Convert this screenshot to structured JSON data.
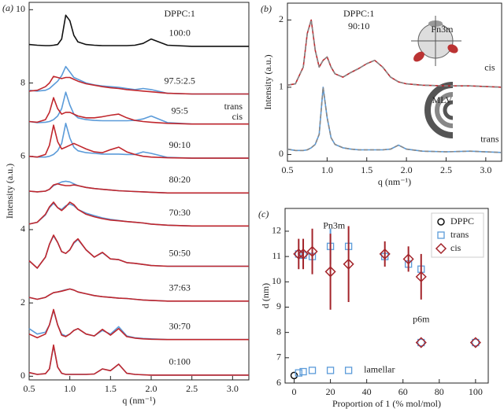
{
  "chart_data": [
    {
      "type": "line",
      "panel_label": "(a)",
      "x_label": "q (nm⁻¹)",
      "y_label": "Intensity (a.u.)",
      "annotation": "DPPC:1",
      "xlim": [
        0.5,
        3.2
      ],
      "ylim": [
        -0.1,
        10.2
      ],
      "xticks": [
        0.5,
        {
          "value": 1,
          "label": "1.0"
        },
        1.5,
        {
          "value": 2,
          "label": "2.0"
        },
        2.5,
        {
          "value": 3,
          "label": "3.0"
        }
      ],
      "yticks": [
        0,
        2,
        4,
        6,
        8,
        10
      ],
      "legend": [
        {
          "name": "trans",
          "color": "#5b9bd9"
        },
        {
          "name": "cis",
          "color": "#c0272d"
        }
      ],
      "x": [
        0.5,
        0.6,
        0.7,
        0.75,
        0.8,
        0.85,
        0.9,
        0.95,
        1.0,
        1.05,
        1.1,
        1.2,
        1.3,
        1.4,
        1.5,
        1.6,
        1.7,
        1.8,
        1.9,
        2.0,
        2.2,
        2.5,
        2.8,
        3.2
      ],
      "samples": [
        {
          "label": "100:0",
          "series": [
            {
              "color": "#111111",
              "values": [
                9.05,
                9.03,
                9.02,
                9.02,
                9.03,
                9.05,
                9.2,
                9.85,
                9.7,
                9.3,
                9.12,
                9.05,
                9.03,
                9.02,
                9.02,
                9.02,
                9.02,
                9.03,
                9.08,
                9.2,
                9.03,
                9.0,
                9.0,
                9.0
              ]
            }
          ]
        },
        {
          "label": "97.5:2.5",
          "series": [
            {
              "color": "#5b9bd9",
              "values": [
                7.8,
                7.78,
                7.8,
                7.85,
                7.95,
                8.05,
                8.2,
                8.45,
                8.3,
                8.15,
                8.1,
                8.0,
                7.95,
                7.92,
                7.9,
                7.88,
                7.85,
                7.82,
                7.85,
                7.82,
                7.72,
                7.7,
                7.7,
                7.7
              ]
            },
            {
              "color": "#c0272d",
              "values": [
                7.78,
                7.8,
                7.9,
                8.0,
                8.18,
                8.15,
                8.12,
                8.15,
                8.15,
                8.1,
                8.05,
                7.98,
                7.94,
                7.9,
                7.87,
                7.85,
                7.82,
                7.8,
                7.78,
                7.76,
                7.72,
                7.7,
                7.7,
                7.7
              ]
            }
          ]
        },
        {
          "label": "95:5",
          "series": [
            {
              "color": "#5b9bd9",
              "values": [
                6.95,
                6.92,
                6.93,
                6.95,
                7.0,
                7.1,
                7.3,
                7.75,
                7.4,
                7.15,
                7.05,
                7.0,
                6.98,
                6.97,
                6.97,
                6.97,
                6.97,
                6.98,
                7.02,
                7.1,
                6.92,
                6.88,
                6.88,
                6.88
              ]
            },
            {
              "color": "#c0272d",
              "values": [
                6.95,
                6.93,
                7.0,
                7.2,
                7.6,
                7.3,
                7.15,
                7.2,
                7.2,
                7.15,
                7.1,
                7.05,
                7.05,
                7.08,
                7.12,
                7.15,
                7.05,
                6.98,
                6.95,
                6.93,
                6.9,
                6.88,
                6.88,
                6.88
              ]
            }
          ]
        },
        {
          "label": "90:10",
          "series": [
            {
              "color": "#5b9bd9",
              "values": [
                6.0,
                5.98,
                5.98,
                6.0,
                6.05,
                6.15,
                6.35,
                6.9,
                6.5,
                6.25,
                6.15,
                6.1,
                6.08,
                6.06,
                6.06,
                6.06,
                6.05,
                6.05,
                6.12,
                6.08,
                5.97,
                5.95,
                5.95,
                5.95
              ]
            },
            {
              "color": "#c0272d",
              "values": [
                6.0,
                5.98,
                6.05,
                6.3,
                6.85,
                6.4,
                6.2,
                6.25,
                6.3,
                6.35,
                6.3,
                6.2,
                6.12,
                6.1,
                6.18,
                6.25,
                6.12,
                6.05,
                6.0,
                5.98,
                5.96,
                5.95,
                5.95,
                5.95
              ]
            }
          ]
        },
        {
          "label": "80:20",
          "series": [
            {
              "color": "#5b9bd9",
              "values": [
                5.05,
                5.03,
                5.05,
                5.1,
                5.2,
                5.25,
                5.3,
                5.32,
                5.3,
                5.25,
                5.2,
                5.15,
                5.12,
                5.1,
                5.08,
                5.06,
                5.05,
                5.04,
                5.03,
                5.02,
                5.0,
                5.0,
                5.0,
                5.0
              ]
            },
            {
              "color": "#c0272d",
              "values": [
                5.05,
                5.03,
                5.05,
                5.1,
                5.22,
                5.25,
                5.22,
                5.2,
                5.2,
                5.22,
                5.2,
                5.15,
                5.12,
                5.1,
                5.08,
                5.06,
                5.05,
                5.04,
                5.03,
                5.02,
                5.0,
                5.0,
                5.0,
                5.0
              ]
            }
          ]
        },
        {
          "label": "70:30",
          "series": [
            {
              "color": "#5b9bd9",
              "values": [
                4.15,
                4.2,
                4.4,
                4.6,
                4.72,
                4.6,
                4.55,
                4.65,
                4.7,
                4.65,
                4.55,
                4.45,
                4.38,
                4.32,
                4.28,
                4.25,
                4.22,
                4.2,
                4.18,
                4.15,
                4.12,
                4.1,
                4.1,
                4.1
              ]
            },
            {
              "color": "#c0272d",
              "values": [
                4.15,
                4.2,
                4.42,
                4.62,
                4.75,
                4.6,
                4.52,
                4.62,
                4.75,
                4.68,
                4.55,
                4.42,
                4.35,
                4.3,
                4.26,
                4.24,
                4.22,
                4.2,
                4.18,
                4.15,
                4.12,
                4.1,
                4.1,
                4.1
              ]
            }
          ]
        },
        {
          "label": "50:50",
          "series": [
            {
              "color": "#5b9bd9",
              "values": [
                3.15,
                2.95,
                3.25,
                3.6,
                3.83,
                3.65,
                3.4,
                3.35,
                3.45,
                3.63,
                3.73,
                3.45,
                3.25,
                3.37,
                3.2,
                3.18,
                3.1,
                3.08,
                3.05,
                3.02,
                3.0,
                3.0,
                3.0,
                3.0
              ]
            },
            {
              "color": "#c0272d",
              "values": [
                3.15,
                2.95,
                3.25,
                3.6,
                3.85,
                3.65,
                3.4,
                3.35,
                3.45,
                3.65,
                3.75,
                3.45,
                3.25,
                3.38,
                3.2,
                3.18,
                3.1,
                3.08,
                3.05,
                3.02,
                3.0,
                3.0,
                3.0,
                3.0
              ]
            }
          ]
        },
        {
          "label": "37:63",
          "series": [
            {
              "color": "#5b9bd9",
              "values": [
                2.15,
                2.1,
                2.15,
                2.22,
                2.28,
                2.3,
                2.33,
                2.36,
                2.38,
                2.35,
                2.3,
                2.25,
                2.2,
                2.17,
                2.15,
                2.13,
                2.12,
                2.1,
                2.08,
                2.07,
                2.05,
                2.05,
                2.05,
                2.05
              ]
            },
            {
              "color": "#c0272d",
              "values": [
                2.15,
                2.1,
                2.15,
                2.22,
                2.28,
                2.3,
                2.32,
                2.35,
                2.38,
                2.35,
                2.3,
                2.25,
                2.2,
                2.17,
                2.15,
                2.13,
                2.12,
                2.1,
                2.08,
                2.07,
                2.05,
                2.05,
                2.05,
                2.05
              ]
            }
          ]
        },
        {
          "label": "30:70",
          "series": [
            {
              "color": "#5b9bd9",
              "values": [
                1.3,
                1.15,
                1.2,
                1.4,
                1.8,
                1.4,
                1.15,
                1.1,
                1.15,
                1.25,
                1.3,
                1.15,
                1.1,
                1.25,
                1.15,
                1.35,
                1.1,
                1.05,
                1.03,
                1.02,
                1.0,
                1.0,
                1.0,
                1.0
              ]
            },
            {
              "color": "#c0272d",
              "values": [
                1.15,
                1.05,
                1.15,
                1.4,
                1.82,
                1.4,
                1.12,
                1.08,
                1.15,
                1.25,
                1.3,
                1.15,
                1.1,
                1.28,
                1.12,
                1.3,
                1.08,
                1.04,
                1.02,
                1.01,
                1.0,
                1.0,
                1.0,
                1.0
              ]
            }
          ]
        },
        {
          "label": "0:100",
          "series": [
            {
              "color": "#5b9bd9",
              "values": [
                0.1,
                0.05,
                0.07,
                0.2,
                0.83,
                0.25,
                0.08,
                0.05,
                0.05,
                0.05,
                0.05,
                0.05,
                0.06,
                0.2,
                0.15,
                0.33,
                0.08,
                0.05,
                0.04,
                0.03,
                0.03,
                0.03,
                0.03,
                0.03
              ]
            },
            {
              "color": "#c0272d",
              "values": [
                0.1,
                0.05,
                0.07,
                0.2,
                0.85,
                0.25,
                0.08,
                0.05,
                0.05,
                0.05,
                0.05,
                0.05,
                0.06,
                0.2,
                0.15,
                0.33,
                0.08,
                0.05,
                0.04,
                0.03,
                0.03,
                0.03,
                0.03,
                0.03
              ]
            }
          ]
        }
      ]
    },
    {
      "type": "line",
      "panel_label": "(b)",
      "x_label": "q (nm⁻¹)",
      "y_label": "Intensity (a.u.)",
      "annotations": [
        "DPPC:1",
        "90:10"
      ],
      "xlim": [
        0.5,
        3.2
      ],
      "ylim": [
        -0.1,
        2.25
      ],
      "xticks": [
        0.5,
        {
          "value": 1,
          "label": "1.0"
        },
        1.5,
        {
          "value": 2,
          "label": "2.0"
        },
        2.5,
        {
          "value": 3,
          "label": "3.0"
        }
      ],
      "yticks": [
        0,
        1,
        2
      ],
      "x": [
        0.5,
        0.6,
        0.7,
        0.75,
        0.8,
        0.85,
        0.9,
        0.95,
        1.0,
        1.05,
        1.1,
        1.2,
        1.3,
        1.4,
        1.5,
        1.6,
        1.7,
        1.8,
        1.9,
        2.0,
        2.2,
        2.5,
        2.8,
        3.2
      ],
      "fit_color": "#888888",
      "series": [
        {
          "label": "Pn3m",
          "name": "cis",
          "color": "#c0272d",
          "values": [
            1.03,
            1.05,
            1.3,
            1.8,
            2.0,
            1.55,
            1.3,
            1.4,
            1.45,
            1.3,
            1.2,
            1.15,
            1.22,
            1.28,
            1.35,
            1.4,
            1.3,
            1.15,
            1.08,
            1.05,
            1.03,
            1.02,
            1.02,
            1.0
          ]
        },
        {
          "label": "MLV",
          "name": "trans",
          "color": "#5b9bd9",
          "values": [
            0.08,
            0.06,
            0.06,
            0.07,
            0.1,
            0.15,
            0.3,
            1.0,
            0.55,
            0.25,
            0.15,
            0.1,
            0.08,
            0.07,
            0.07,
            0.07,
            0.07,
            0.08,
            0.14,
            0.08,
            0.05,
            0.04,
            0.05,
            0.03
          ]
        }
      ]
    },
    {
      "type": "scatter",
      "panel_label": "(c)",
      "x_label": "Proportion of 1 (% mol/mol)",
      "y_label": "d (nm)",
      "xlim": [
        -5,
        107
      ],
      "ylim": [
        6,
        12.9
      ],
      "xticks": [
        0,
        20,
        40,
        60,
        80,
        100
      ],
      "yticks": [
        6,
        7,
        8,
        9,
        10,
        11,
        12
      ],
      "legend_position": "upper right",
      "annotations": [
        "Pn3m",
        "p6m",
        "lamellar"
      ],
      "series": [
        {
          "name": "DPPC",
          "color": "#111111",
          "marker": "circle",
          "x": [
            0
          ],
          "values": [
            6.3
          ]
        },
        {
          "name": "trans",
          "color": "#5b9bd9",
          "marker": "square",
          "x": [
            2.5,
            5,
            10,
            20,
            30,
            2.5,
            5,
            10,
            20,
            30,
            50,
            63,
            70,
            70,
            100
          ],
          "values": [
            6.4,
            6.45,
            6.5,
            6.5,
            6.5,
            11.1,
            11.05,
            11.0,
            11.4,
            11.4,
            11.0,
            10.7,
            10.5,
            7.6,
            7.6
          ],
          "errors": [
            null,
            null,
            null,
            null,
            null,
            null,
            null,
            null,
            0.7,
            null,
            null,
            null,
            null,
            null,
            null
          ]
        },
        {
          "name": "cis",
          "color": "#a3242a",
          "marker": "diamond",
          "x": [
            2.5,
            5,
            10,
            20,
            30,
            50,
            63,
            70,
            70,
            100
          ],
          "values": [
            11.1,
            11.1,
            11.2,
            10.4,
            10.7,
            11.1,
            10.9,
            10.2,
            7.6,
            7.6
          ],
          "errors": [
            0.6,
            0.6,
            0.9,
            1.5,
            1.5,
            0.5,
            0.5,
            0.9,
            null,
            null
          ]
        }
      ]
    }
  ]
}
